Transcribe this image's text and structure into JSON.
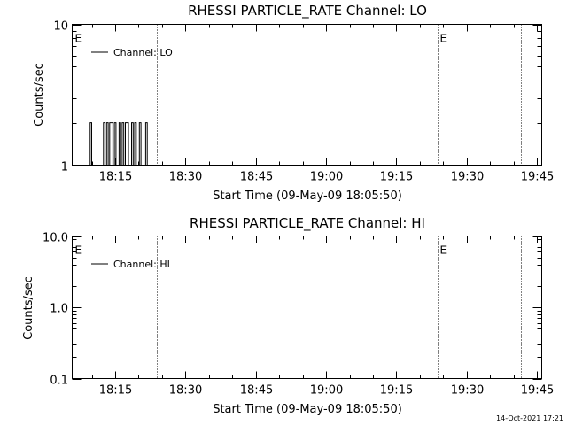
{
  "timestamp": "14-Oct-2021 17:21",
  "chart_data": [
    {
      "type": "line",
      "title": "RHESSI PARTICLE_RATE Channel: LO",
      "xlabel": "Start Time (09-May-09 18:05:50)",
      "ylabel": "Counts/sec",
      "x_scale": "time",
      "y_scale": "log",
      "xlim": [
        "18:05:50",
        "19:46:00"
      ],
      "ylim": [
        1,
        10
      ],
      "x_ticks": [
        "18:15",
        "18:30",
        "18:45",
        "19:00",
        "19:15",
        "19:30",
        "19:45"
      ],
      "y_ticks": [
        {
          "value": 1,
          "label": "1"
        },
        {
          "value": 10,
          "label": "10"
        }
      ],
      "legend_position": "top-left",
      "markers": [
        {
          "time": "18:05:50",
          "label": "E"
        },
        {
          "time": "18:23:50",
          "label": ""
        },
        {
          "time": "19:23:50",
          "label": "E"
        },
        {
          "time": "19:41:30",
          "label": ""
        }
      ],
      "series": [
        {
          "name": "Channel: LO",
          "x": [
            "18:09:20",
            "18:09:40",
            "18:10:00",
            "18:12:10",
            "18:12:30",
            "18:12:50",
            "18:13:10",
            "18:13:30",
            "18:13:50",
            "18:14:10",
            "18:14:30",
            "18:14:50",
            "18:15:10",
            "18:15:30",
            "18:15:50",
            "18:16:10",
            "18:16:30",
            "18:16:50",
            "18:17:10",
            "18:17:30",
            "18:17:50",
            "18:18:10",
            "18:18:30",
            "18:18:50",
            "18:19:10",
            "18:19:30",
            "18:19:50",
            "18:20:10",
            "18:20:30",
            "18:20:50",
            "18:21:10",
            "18:21:30",
            "18:21:50"
          ],
          "y": [
            1,
            2,
            1,
            1,
            2,
            1,
            2,
            1,
            2,
            2,
            1,
            2,
            1,
            1,
            2,
            1,
            2,
            1,
            2,
            2,
            1,
            1,
            2,
            1,
            2,
            1,
            1,
            2,
            1,
            1,
            1,
            2,
            1
          ]
        }
      ]
    },
    {
      "type": "line",
      "title": "RHESSI PARTICLE_RATE Channel: HI",
      "xlabel": "Start Time (09-May-09 18:05:50)",
      "ylabel": "Counts/sec",
      "x_scale": "time",
      "y_scale": "log",
      "xlim": [
        "18:05:50",
        "19:46:00"
      ],
      "ylim": [
        0.1,
        10
      ],
      "x_ticks": [
        "18:15",
        "18:30",
        "18:45",
        "19:00",
        "19:15",
        "19:30",
        "19:45"
      ],
      "y_ticks": [
        {
          "value": 0.1,
          "label": "0.1"
        },
        {
          "value": 1,
          "label": "1.0"
        },
        {
          "value": 10,
          "label": "10.0"
        }
      ],
      "legend_position": "top-left",
      "markers": [
        {
          "time": "18:05:50",
          "label": "E"
        },
        {
          "time": "18:23:50",
          "label": ""
        },
        {
          "time": "19:23:50",
          "label": "E"
        },
        {
          "time": "19:41:30",
          "label": ""
        }
      ],
      "series": [
        {
          "name": "Channel: HI",
          "x": [],
          "y": []
        }
      ]
    }
  ]
}
